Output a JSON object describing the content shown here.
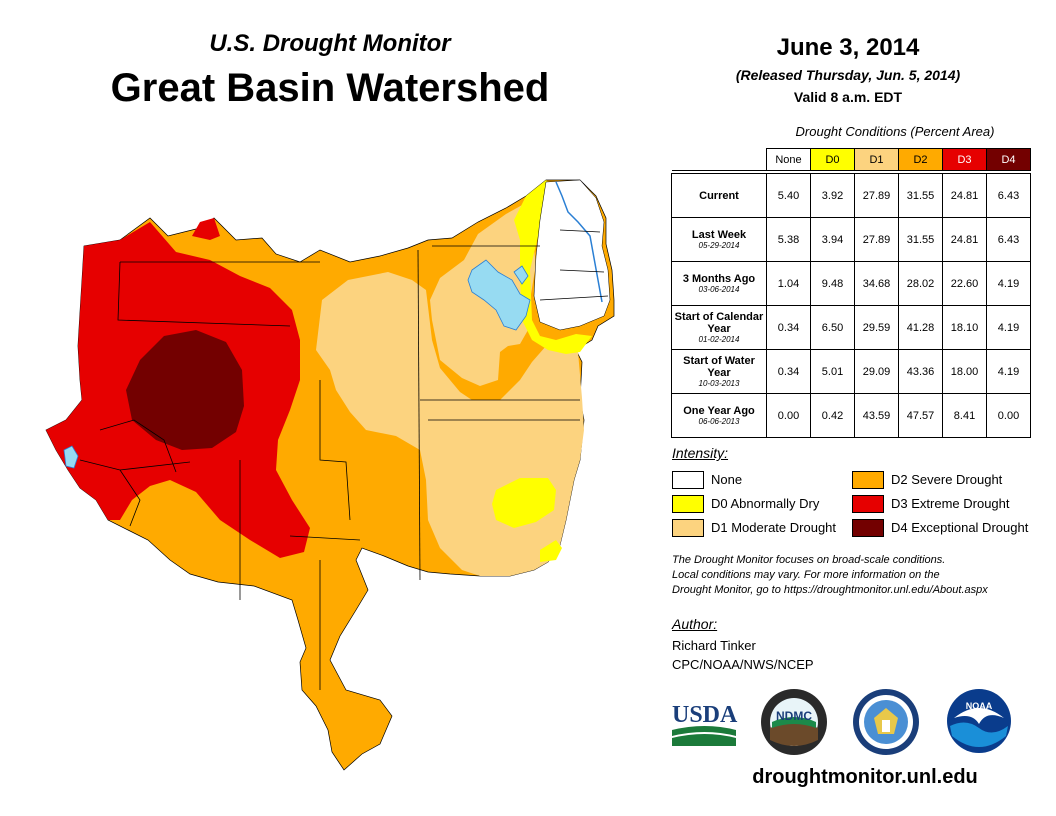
{
  "header": {
    "subtitle": "U.S. Drought Monitor",
    "title": "Great Basin Watershed",
    "date": "June 3, 2014",
    "released": "(Released Thursday, Jun. 5, 2014)",
    "valid": "Valid 8 a.m. EDT"
  },
  "table": {
    "caption": "Drought Conditions (Percent Area)",
    "columns": [
      {
        "label": "None",
        "color": "#ffffff"
      },
      {
        "label": "D0",
        "color": "#ffff00"
      },
      {
        "label": "D1",
        "color": "#fcd37f"
      },
      {
        "label": "D2",
        "color": "#ffaa00"
      },
      {
        "label": "D3",
        "color": "#e60000"
      },
      {
        "label": "D4",
        "color": "#730000"
      }
    ],
    "rows": [
      {
        "label": "Current",
        "date": "",
        "values": [
          "5.40",
          "3.92",
          "27.89",
          "31.55",
          "24.81",
          "6.43"
        ]
      },
      {
        "label": "Last Week",
        "date": "05-29-2014",
        "values": [
          "5.38",
          "3.94",
          "27.89",
          "31.55",
          "24.81",
          "6.43"
        ]
      },
      {
        "label": "3 Months Ago",
        "date": "03-06-2014",
        "values": [
          "1.04",
          "9.48",
          "34.68",
          "28.02",
          "22.60",
          "4.19"
        ]
      },
      {
        "label": "Start of Calendar Year",
        "date": "01-02-2014",
        "values": [
          "0.34",
          "6.50",
          "29.59",
          "41.28",
          "18.10",
          "4.19"
        ]
      },
      {
        "label": "Start of Water Year",
        "date": "10-03-2013",
        "values": [
          "0.34",
          "5.01",
          "29.09",
          "43.36",
          "18.00",
          "4.19"
        ]
      },
      {
        "label": "One Year Ago",
        "date": "06-06-2013",
        "values": [
          "0.00",
          "0.42",
          "43.59",
          "47.57",
          "8.41",
          "0.00"
        ]
      }
    ]
  },
  "legend": {
    "title": "Intensity:",
    "items": [
      {
        "label": "None",
        "color": "#ffffff"
      },
      {
        "label": "D0 Abnormally Dry",
        "color": "#ffff00"
      },
      {
        "label": "D1 Moderate Drought",
        "color": "#fcd37f"
      },
      {
        "label": "D2 Severe Drought",
        "color": "#ffaa00"
      },
      {
        "label": "D3 Extreme Drought",
        "color": "#e60000"
      },
      {
        "label": "D4 Exceptional Drought",
        "color": "#730000"
      }
    ]
  },
  "note": {
    "line1": "The Drought Monitor focuses on broad-scale conditions.",
    "line2": "Local conditions may vary. For more information on the",
    "line3": "Drought Monitor, go to https://droughtmonitor.unl.edu/About.aspx"
  },
  "author": {
    "title": "Author:",
    "name": "Richard Tinker",
    "org": "CPC/NOAA/NWS/NCEP"
  },
  "logos": {
    "usda": "USDA",
    "ndmc": "NDMC",
    "noaa": "NOAA"
  },
  "url": "droughtmonitor.unl.edu"
}
